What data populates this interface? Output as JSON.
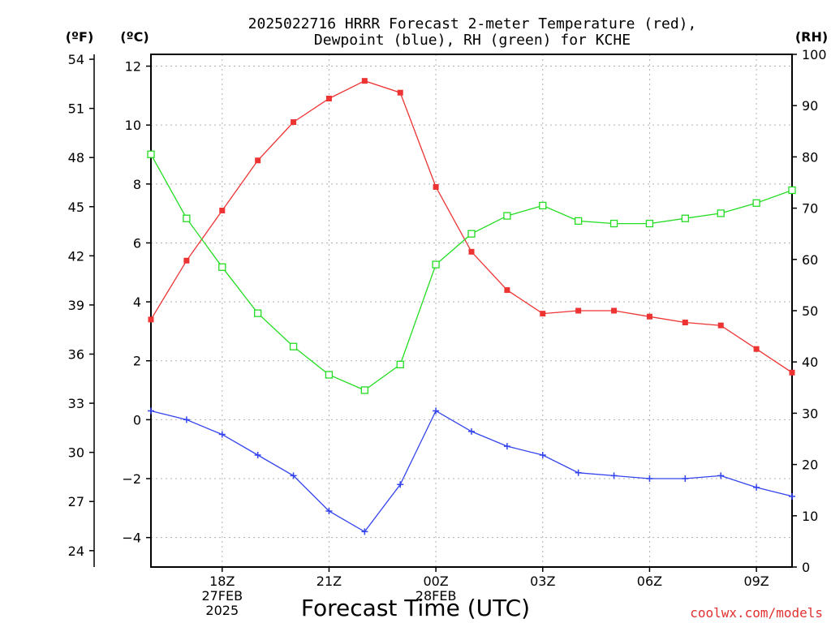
{
  "chart_data": {
    "type": "line",
    "title_line1": "2025022716 HRRR Forecast 2-meter Temperature (red),",
    "title_line2": "Dewpoint (blue), RH (green) for KCHE",
    "xlabel": "Forecast Time (UTC)",
    "credit": "coolwx.com/models",
    "units": {
      "left_f": "(ºF)",
      "left_c": "(ºC)",
      "right_rh": "(RH)"
    },
    "x_hours": [
      16,
      17,
      18,
      19,
      20,
      21,
      22,
      23,
      24,
      25,
      26,
      27,
      28,
      29,
      30,
      31,
      32,
      33,
      34
    ],
    "xlim": [
      16,
      34
    ],
    "x_ticks": [
      {
        "hour": 18,
        "lines": [
          "18Z",
          "27FEB",
          "2025"
        ]
      },
      {
        "hour": 21,
        "lines": [
          "21Z"
        ]
      },
      {
        "hour": 24,
        "lines": [
          "00Z",
          "28FEB"
        ]
      },
      {
        "hour": 27,
        "lines": [
          "03Z"
        ]
      },
      {
        "hour": 30,
        "lines": [
          "06Z"
        ]
      },
      {
        "hour": 33,
        "lines": [
          "09Z"
        ]
      }
    ],
    "c_axis": {
      "ylim": [
        -5,
        12.4
      ],
      "ticks": [
        "12",
        "10",
        "8",
        "6",
        "4",
        "2",
        "0",
        "−2",
        "−4"
      ],
      "tick_values": [
        12,
        10,
        8,
        6,
        4,
        2,
        0,
        -2,
        -4
      ]
    },
    "f_axis": {
      "ylim": [
        23,
        54.3
      ],
      "ticks": [
        "54",
        "51",
        "48",
        "45",
        "42",
        "39",
        "36",
        "33",
        "30",
        "27",
        "24"
      ],
      "tick_values": [
        54,
        51,
        48,
        45,
        42,
        39,
        36,
        33,
        30,
        27,
        24
      ]
    },
    "rh_axis": {
      "ylim": [
        0,
        100
      ],
      "ticks": [
        "100",
        "90",
        "80",
        "70",
        "60",
        "50",
        "40",
        "30",
        "20",
        "10",
        "0"
      ],
      "tick_values": [
        100,
        90,
        80,
        70,
        60,
        50,
        40,
        30,
        20,
        10,
        0
      ]
    },
    "series": [
      {
        "name": "Temperature",
        "axis": "c",
        "color": "#ee3333",
        "marker": "filled-square",
        "values": [
          3.4,
          5.4,
          7.1,
          8.8,
          10.1,
          10.9,
          11.5,
          11.1,
          7.9,
          5.7,
          4.4,
          3.6,
          3.7,
          3.7,
          3.5,
          3.3,
          3.2,
          2.4,
          1.6
        ]
      },
      {
        "name": "Dewpoint",
        "axis": "c",
        "color": "#3344ee",
        "marker": "plus",
        "values": [
          0.3,
          0.0,
          -0.5,
          -1.2,
          -1.9,
          -3.1,
          -3.8,
          -2.2,
          0.3,
          -0.4,
          -0.9,
          -1.2,
          -1.8,
          -1.9,
          -2.0,
          -2.0,
          -1.9,
          -2.3,
          -2.6
        ]
      },
      {
        "name": "RH",
        "axis": "rh",
        "color": "#22dd22",
        "marker": "open-square",
        "values": [
          80.5,
          68.0,
          58.5,
          49.5,
          43.0,
          37.5,
          34.5,
          39.5,
          59.0,
          65.0,
          68.5,
          70.5,
          67.5,
          67.0,
          67.0,
          68.0,
          69.0,
          71.0,
          73.5
        ]
      }
    ],
    "grid": true
  }
}
